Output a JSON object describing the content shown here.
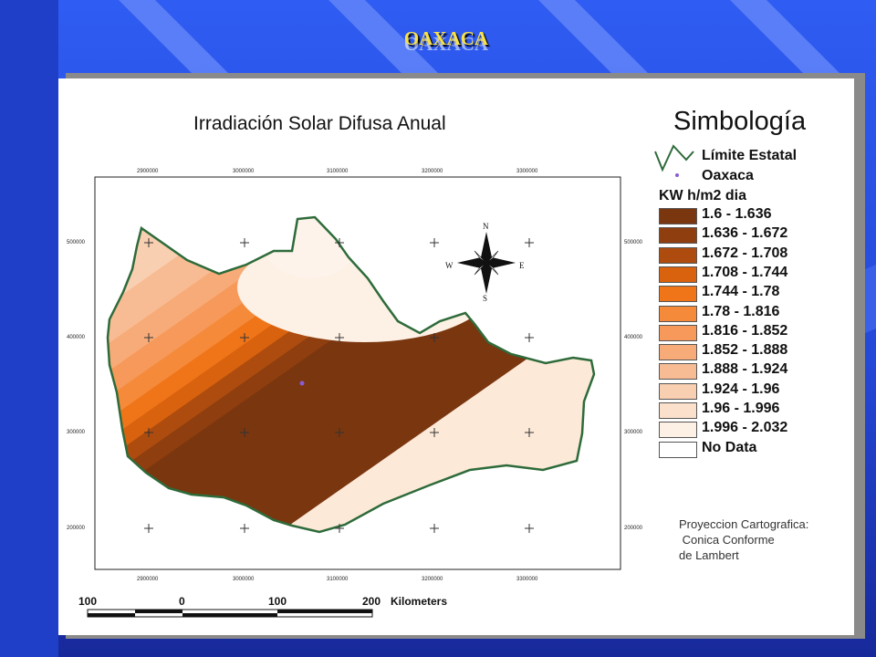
{
  "slide_title": "OAXACA",
  "map_title": "Irradiación Solar Difusa Anual",
  "legend": {
    "title": "Simbología",
    "boundary_label": "Límite Estatal",
    "point_label": "Oaxaca",
    "units": "KW h/m2 dia",
    "classes": [
      {
        "label": "1.6 - 1.636",
        "color": "#7a360f"
      },
      {
        "label": "1.636 - 1.672",
        "color": "#8e3e0f"
      },
      {
        "label": "1.672 - 1.708",
        "color": "#ad4c0e"
      },
      {
        "label": "1.708 - 1.744",
        "color": "#d9620e"
      },
      {
        "label": "1.744 - 1.78",
        "color": "#f07418"
      },
      {
        "label": "1.78 - 1.816",
        "color": "#f48a3a"
      },
      {
        "label": "1.816 - 1.852",
        "color": "#f6995a"
      },
      {
        "label": "1.852 - 1.888",
        "color": "#f7ab78"
      },
      {
        "label": "1.888 - 1.924",
        "color": "#f8bc94"
      },
      {
        "label": "1.924 - 1.96",
        "color": "#f9cfb2"
      },
      {
        "label": "1.96 - 1.996",
        "color": "#fbe0cc"
      },
      {
        "label": "1.996 - 2.032",
        "color": "#fdf0e4"
      },
      {
        "label": "No Data",
        "color": "#ffffff"
      }
    ]
  },
  "projection": [
    "Proyeccion Cartografica:",
    " Conica Conforme",
    "de Lambert"
  ],
  "axis": {
    "x_ticks": [
      "2900000",
      "3000000",
      "3100000",
      "3200000",
      "3300000"
    ],
    "y_ticks": [
      "500000",
      "400000",
      "300000",
      "200000"
    ]
  },
  "compass": {
    "n": "N",
    "s": "S",
    "e": "E",
    "w": "W"
  },
  "scale_bar": {
    "labels": [
      "100",
      "0",
      "100",
      "200"
    ],
    "unit": "Kilometers"
  },
  "colors": {
    "background": "#2a52e8",
    "title": "#f7e14a",
    "boundary": "#2e6b3a",
    "capital_point": "#8a5cd6"
  }
}
